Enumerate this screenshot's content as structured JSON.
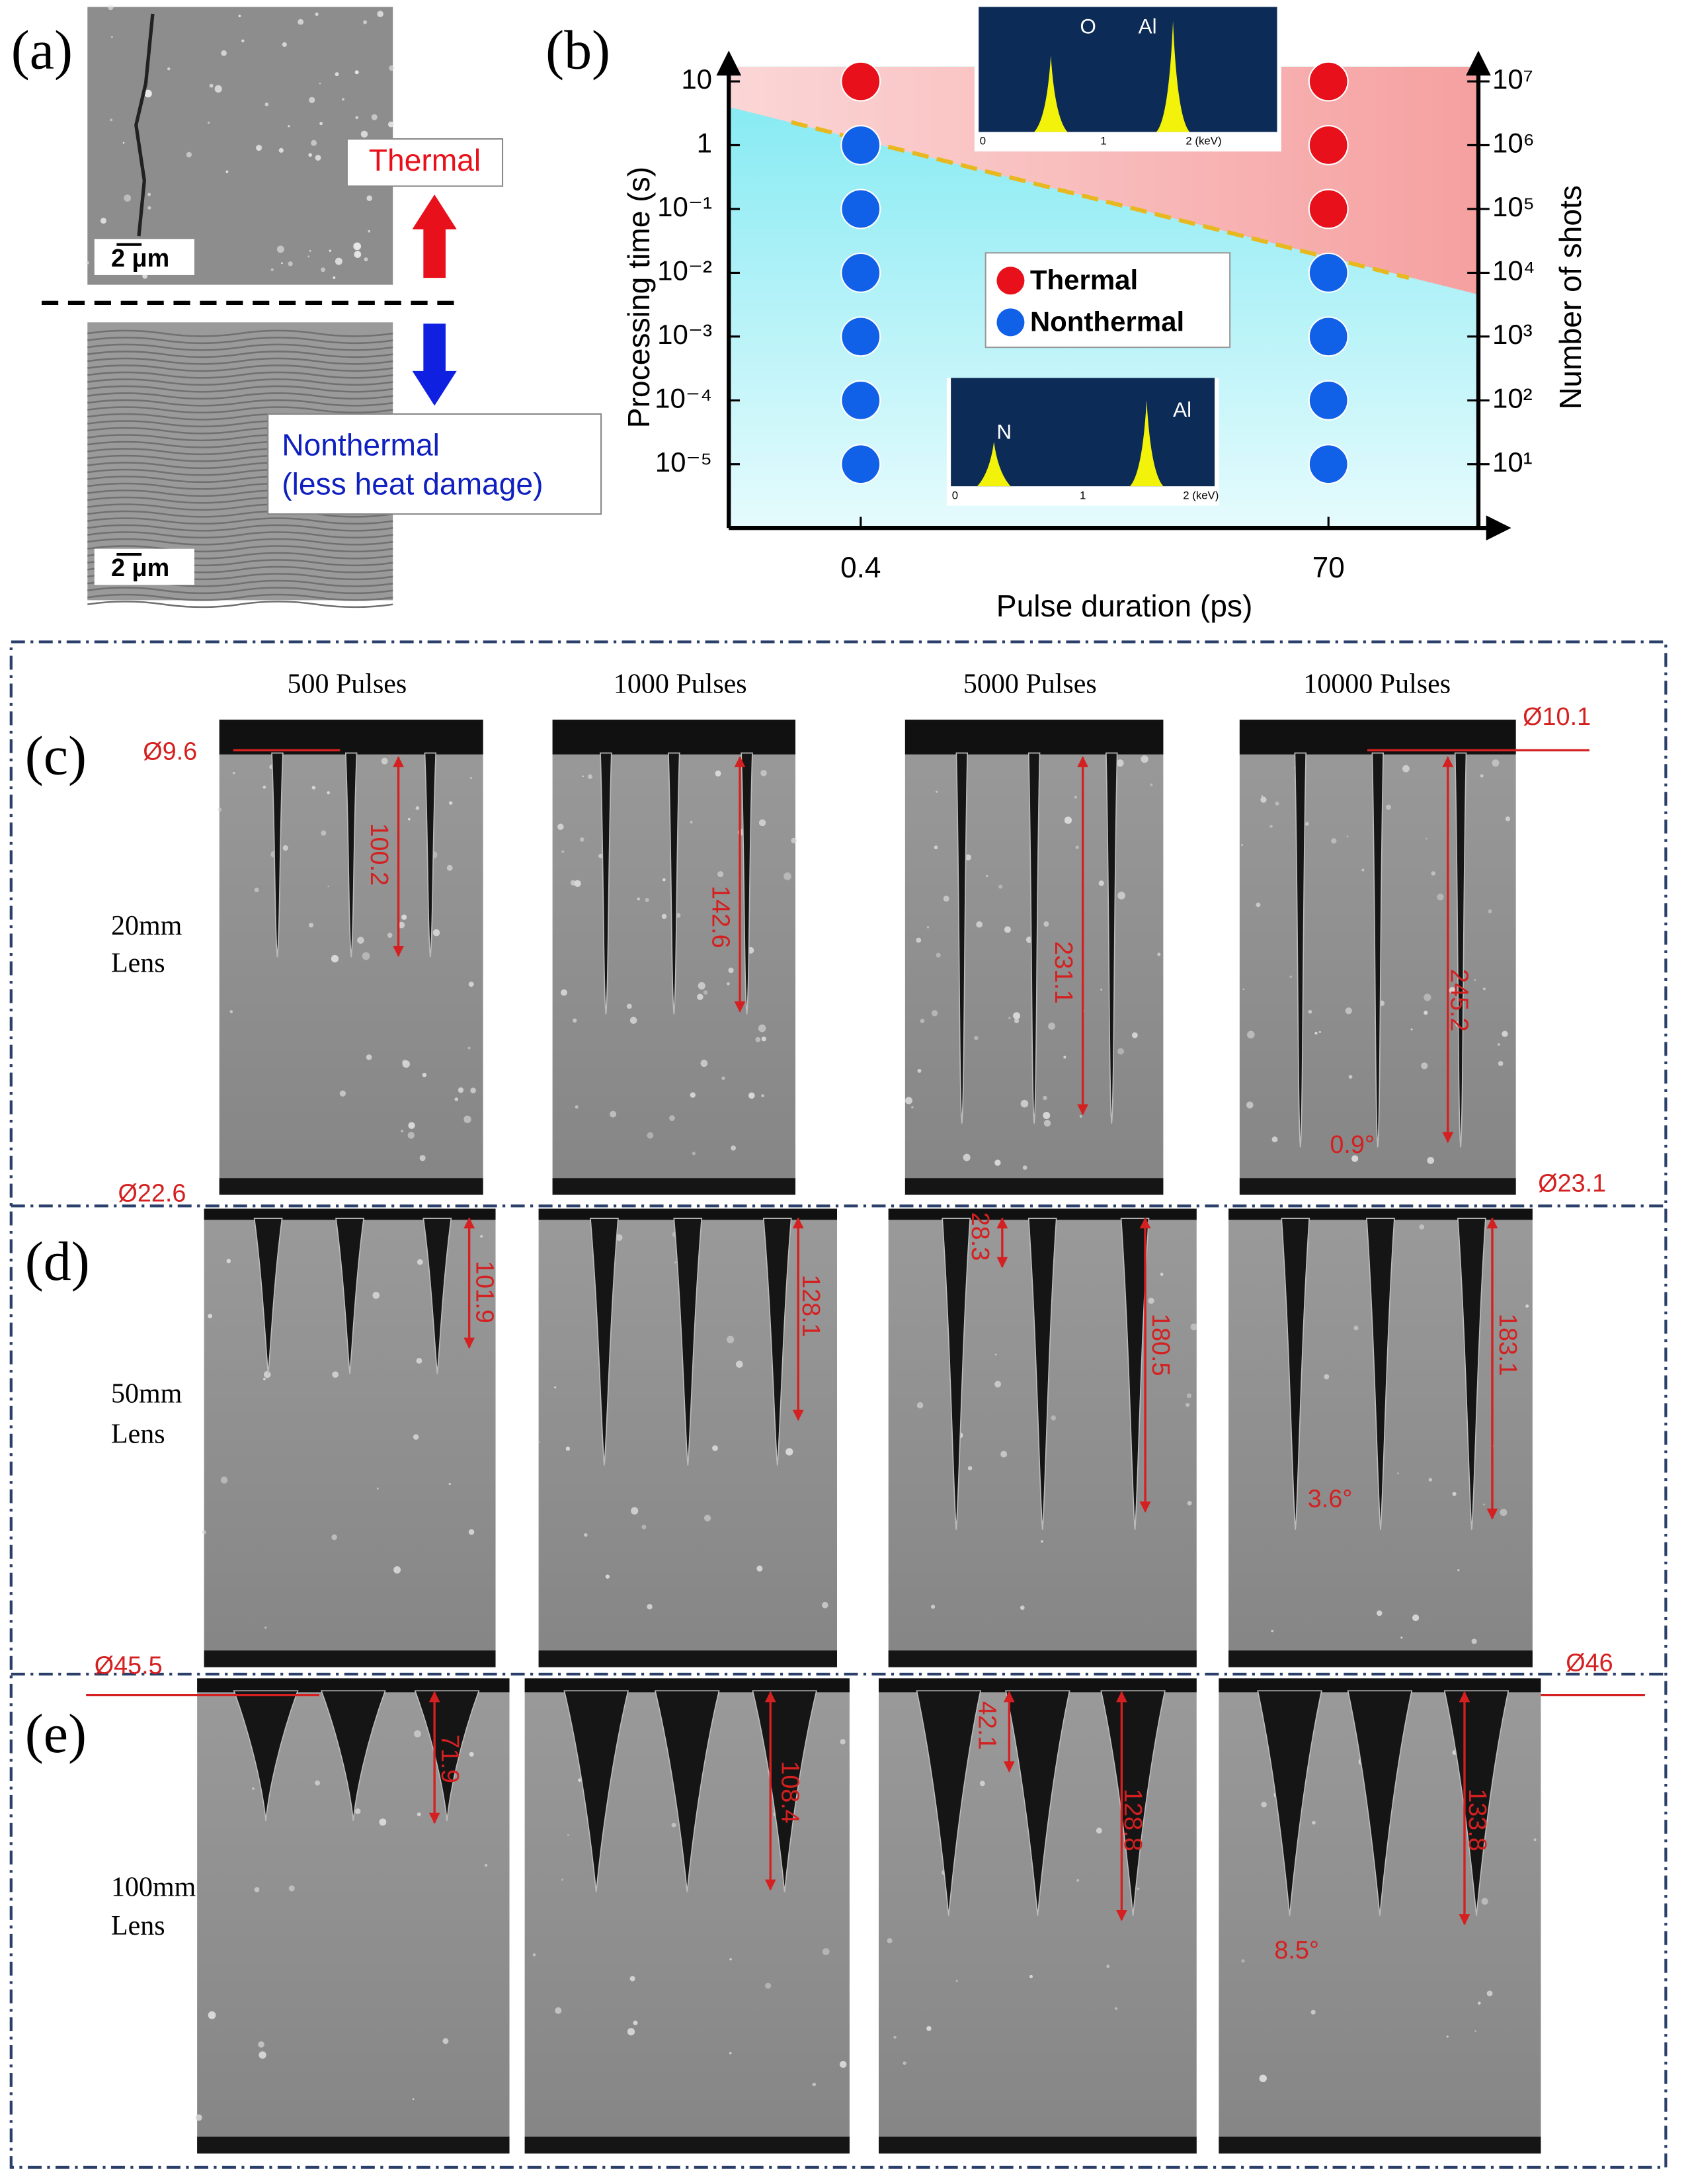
{
  "panel_labels": [
    "(a)",
    "(b)",
    "(c)",
    "(d)",
    "(e)"
  ],
  "panel_a": {
    "scale_bars": [
      "2 μm",
      "2 μm"
    ],
    "thermal": "Thermal",
    "nonthermal": [
      "Nonthermal",
      "(less heat damage)"
    ]
  },
  "chart_data": {
    "type": "scatter",
    "xlabel": "Pulse duration (ps)",
    "ylabel": "Processing time (s)",
    "y2label": "Number of shots",
    "categories": [
      "0.4",
      "70"
    ],
    "log_y": true,
    "ylim": [
      1e-06,
      17
    ],
    "yticks": [
      10,
      1,
      {
        "value": 0.1,
        "label": "10⁻¹"
      },
      {
        "value": 0.01,
        "label": "10⁻²"
      },
      {
        "value": 0.001,
        "label": "10⁻³"
      },
      {
        "value": 0.0001,
        "label": "10⁻⁴"
      },
      {
        "value": 1e-05,
        "label": "10⁻⁵"
      }
    ],
    "y2lim": [
      1,
      17000000
    ],
    "y2ticks": [
      {
        "value": 10000000,
        "label": "10⁷"
      },
      {
        "value": 1000000,
        "label": "10⁶"
      },
      {
        "value": 100000,
        "label": "10⁵"
      },
      {
        "value": 10000,
        "label": "10⁴"
      },
      {
        "value": 1000,
        "label": "10³"
      },
      {
        "value": 100,
        "label": "10²"
      },
      {
        "value": 10,
        "label": "10¹"
      }
    ],
    "legend": "center",
    "series": [
      {
        "name": "Thermal",
        "color": "#e8101a",
        "x": [
          "0.4",
          "70",
          "70",
          "70"
        ],
        "values": [
          10,
          10,
          1,
          0.1
        ]
      },
      {
        "name": "Nonthermal",
        "color": "#1060e8",
        "x": [
          "0.4",
          "0.4",
          "0.4",
          "0.4",
          "0.4",
          "0.4",
          "70",
          "70",
          "70",
          "70"
        ],
        "values": [
          1,
          0.1,
          0.01,
          0.001,
          0.0001,
          1e-05,
          0.01,
          0.001,
          0.0001,
          1e-05
        ]
      }
    ]
  },
  "insets": [
    {
      "peaks": [
        "O",
        "Al"
      ],
      "ticks": [
        "0",
        "1",
        "2 (keV)"
      ]
    },
    {
      "peaks": [
        "N",
        "Al"
      ],
      "ticks": [
        "0",
        "1",
        "2 (keV)"
      ]
    }
  ],
  "micrographs": {
    "columns": [
      "500 Pulses",
      "1000 Pulses",
      "5000 Pulses",
      "10000 Pulses"
    ],
    "rows": [
      {
        "lens": [
          "20mm",
          "Lens"
        ],
        "annotations": [
          "Ø9.6",
          "100.2",
          "142.6",
          "231.1",
          "245.2",
          "0.9°",
          "Ø10.1",
          "Ø22.6",
          "Ø23.1"
        ]
      },
      {
        "lens": [
          "50mm",
          "Lens"
        ],
        "annotations": [
          "101.9",
          "128.1",
          "28.3",
          "180.5",
          "183.1",
          "3.6°"
        ]
      },
      {
        "lens": [
          "100mm",
          "Lens"
        ],
        "annotations": [
          "Ø45.5",
          "Ø46",
          "71.9",
          "108.4",
          "42.1",
          "128.8",
          "133.8",
          "8.5°"
        ]
      }
    ]
  }
}
